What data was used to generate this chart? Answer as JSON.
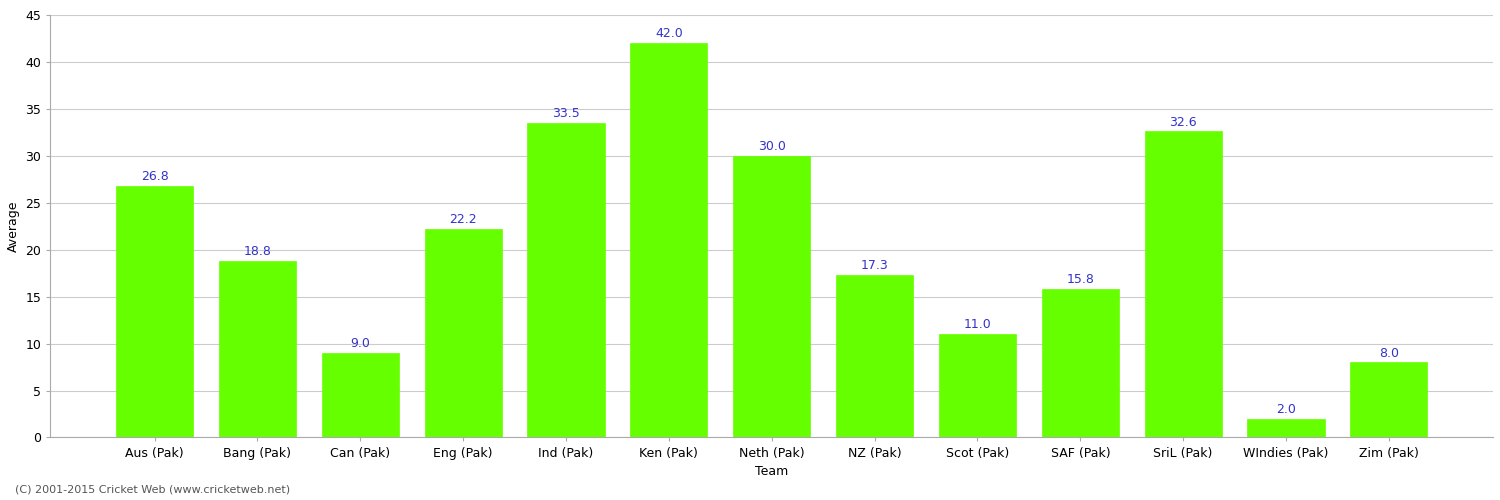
{
  "categories": [
    "Aus (Pak)",
    "Bang (Pak)",
    "Can (Pak)",
    "Eng (Pak)",
    "Ind (Pak)",
    "Ken (Pak)",
    "Neth (Pak)",
    "NZ (Pak)",
    "Scot (Pak)",
    "SAF (Pak)",
    "SriL (Pak)",
    "WIndies (Pak)",
    "Zim (Pak)"
  ],
  "values": [
    26.8,
    18.8,
    9.0,
    22.2,
    33.5,
    42.0,
    30.0,
    17.3,
    11.0,
    15.8,
    32.6,
    2.0,
    8.0
  ],
  "bar_color": "#66ff00",
  "bar_edge_color": "#66ff00",
  "label_color": "#3333cc",
  "ylabel": "Average",
  "xlabel": "Team",
  "ylim": [
    0,
    45
  ],
  "yticks": [
    0,
    5,
    10,
    15,
    20,
    25,
    30,
    35,
    40,
    45
  ],
  "grid_color": "#cccccc",
  "background_color": "#ffffff",
  "footer_text": "(C) 2001-2015 Cricket Web (www.cricketweb.net)",
  "label_fontsize": 9,
  "tick_fontsize": 9,
  "axis_label_fontsize": 9,
  "footer_fontsize": 8
}
